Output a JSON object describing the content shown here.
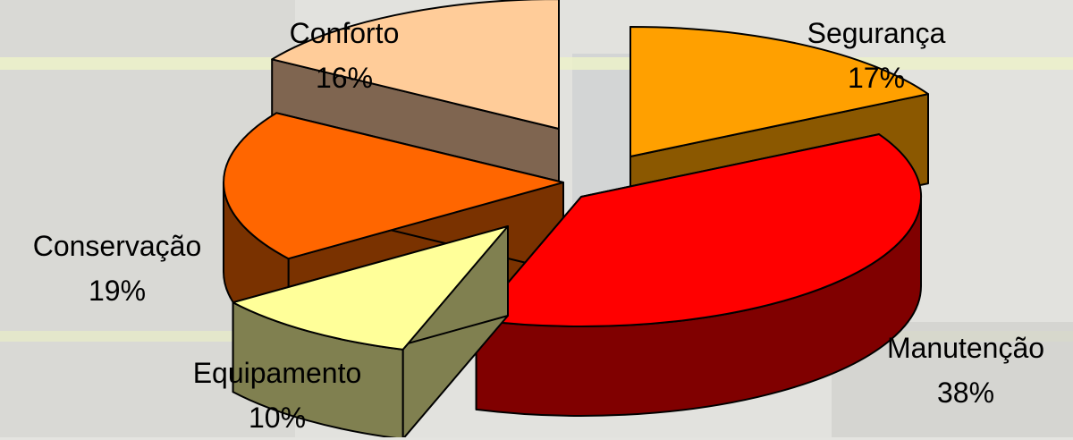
{
  "chart_data": {
    "type": "pie",
    "style": "3d-exploded",
    "categories": [
      "Segurança",
      "Manutenção",
      "Equipamento",
      "Conservação",
      "Conforto"
    ],
    "values": [
      17,
      38,
      10,
      19,
      16
    ],
    "value_labels": [
      "17%",
      "38%",
      "10%",
      "19%",
      "16%"
    ],
    "colors": {
      "Segurança": "#FFA000",
      "Manutenção": "#FF0000",
      "Equipamento": "#FFFF99",
      "Conservação": "#FF6600",
      "Conforto": "#FFCC99"
    },
    "side_colors": {
      "Segurança": "#8B5800",
      "Manutenção": "#800000",
      "Equipamento": "#808050",
      "Conservação": "#7A3200",
      "Conforto": "#7F6550"
    },
    "legend": "none",
    "data_labels": "outside"
  }
}
